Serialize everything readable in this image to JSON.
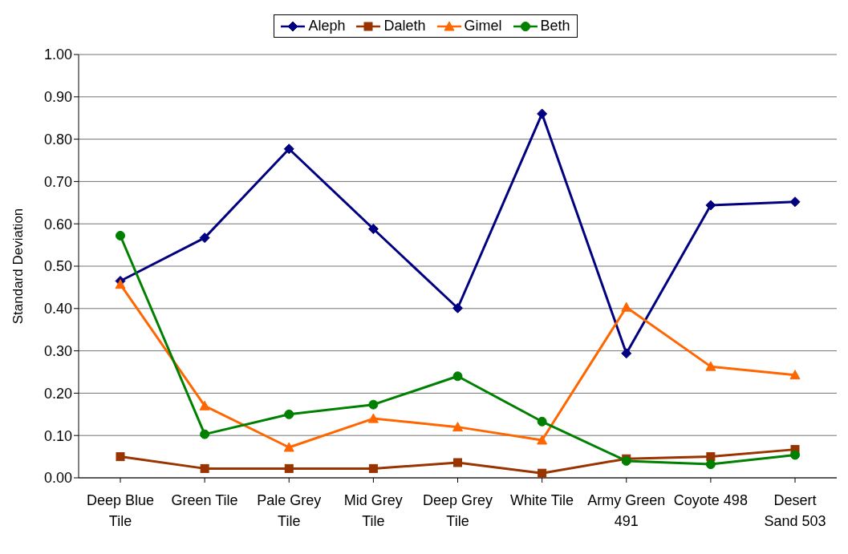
{
  "chart_data": {
    "type": "line",
    "ylabel": "Standard Deviation",
    "categories": [
      "Deep Blue Tile",
      "Green Tile",
      "Pale Grey Tile",
      "Mid Grey Tile",
      "Deep Grey Tile",
      "White Tile",
      "Army Green 491",
      "Coyote 498",
      "Desert Sand 503"
    ],
    "series": [
      {
        "name": "Aleph",
        "color": "#000080",
        "marker": "diamond",
        "values": [
          0.465,
          0.567,
          0.777,
          0.588,
          0.401,
          0.86,
          0.294,
          0.644,
          0.652
        ]
      },
      {
        "name": "Daleth",
        "color": "#993300",
        "marker": "square",
        "values": [
          0.05,
          0.022,
          0.022,
          0.022,
          0.036,
          0.011,
          0.045,
          0.05,
          0.067
        ]
      },
      {
        "name": "Gimel",
        "color": "#ff6600",
        "marker": "triangle",
        "values": [
          0.457,
          0.17,
          0.072,
          0.14,
          0.12,
          0.089,
          0.403,
          0.263,
          0.243
        ]
      },
      {
        "name": "Beth",
        "color": "#008000",
        "marker": "circle",
        "values": [
          0.572,
          0.103,
          0.15,
          0.173,
          0.24,
          0.133,
          0.04,
          0.032,
          0.054
        ]
      }
    ],
    "ylim": [
      0,
      1
    ],
    "yticks": [
      {
        "value": 0,
        "label": "0.00"
      },
      {
        "value": 0.1,
        "label": "0.10"
      },
      {
        "value": 0.2,
        "label": "0.20"
      },
      {
        "value": 0.3,
        "label": "0.30"
      },
      {
        "value": 0.4,
        "label": "0.40"
      },
      {
        "value": 0.5,
        "label": "0.50"
      },
      {
        "value": 0.6,
        "label": "0.60"
      },
      {
        "value": 0.7,
        "label": "0.70"
      },
      {
        "value": 0.8,
        "label": "0.80"
      },
      {
        "value": 0.9,
        "label": "0.90"
      },
      {
        "value": 1,
        "label": "1.00"
      }
    ],
    "grid": "y",
    "legend": "top"
  }
}
